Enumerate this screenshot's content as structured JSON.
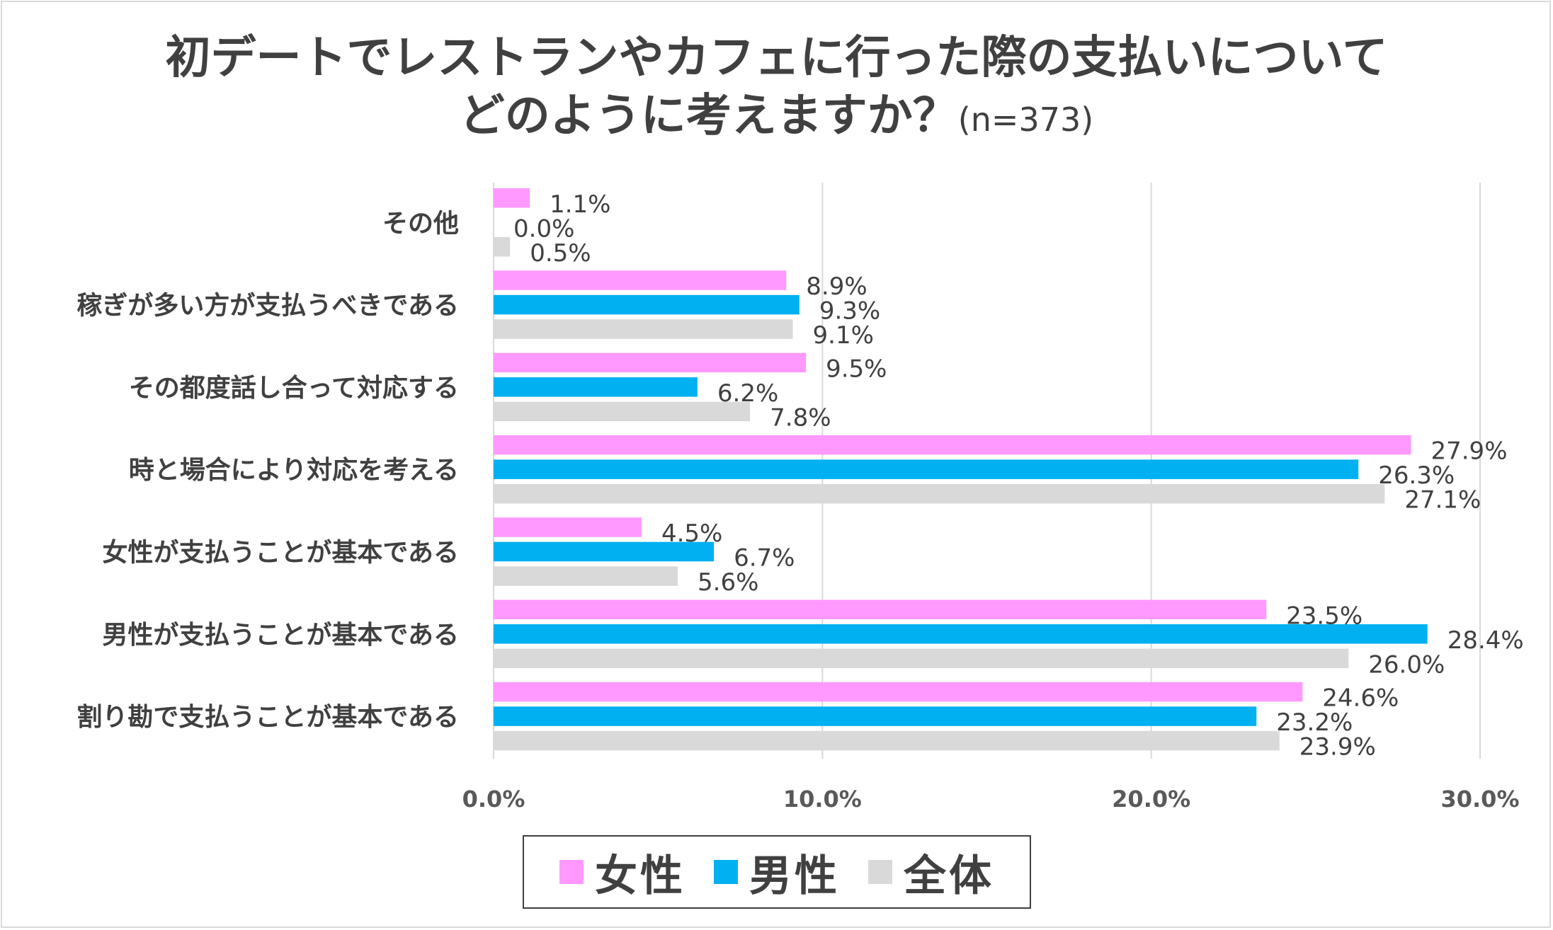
{
  "title_line1": "初デートでレストランやカフェに行った際の支払いについて",
  "title_line2": "どのように考えますか？",
  "title_n": "(n=373)",
  "colors": {
    "female": "#ff99ff",
    "male": "#00b0f0",
    "overall": "#d9d9d9"
  },
  "chart_data": {
    "type": "bar",
    "orientation": "horizontal",
    "categories": [
      "その他",
      "稼ぎが多い方が支払うべきである",
      "その都度話し合って対応する",
      "時と場合により対応を考える",
      "女性が支払うことが基本である",
      "男性が支払うことが基本である",
      "割り勘で支払うことが基本である"
    ],
    "series": [
      {
        "name": "女性",
        "key": "female",
        "values": [
          1.1,
          8.9,
          9.5,
          27.9,
          4.5,
          23.5,
          24.6
        ]
      },
      {
        "name": "男性",
        "key": "male",
        "values": [
          0.0,
          9.3,
          6.2,
          26.3,
          6.7,
          28.4,
          23.2
        ]
      },
      {
        "name": "全体",
        "key": "overall",
        "values": [
          0.5,
          9.1,
          7.8,
          27.1,
          5.6,
          26.0,
          23.9
        ]
      }
    ],
    "value_format": "percent_1dp",
    "xlim": [
      0,
      30
    ],
    "xticks": [
      0,
      10,
      20,
      30
    ],
    "xtick_labels": [
      "0.0%",
      "10.0%",
      "20.0%",
      "30.0%"
    ],
    "grid": true,
    "legend": "bottom"
  }
}
